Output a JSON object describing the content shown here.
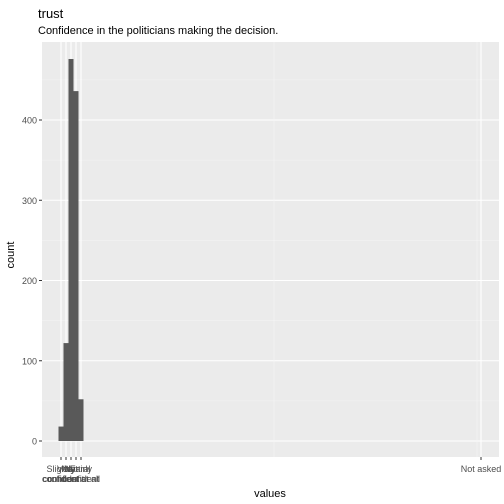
{
  "chart_data": {
    "type": "bar",
    "title": "trust",
    "subtitle": "Confidence in the politicians making the decision.",
    "xlabel": "values",
    "ylabel": "count",
    "ylim": [
      0,
      480
    ],
    "yticks": [
      0,
      100,
      200,
      300,
      400
    ],
    "grid": true,
    "legend": "none",
    "bar_color": "#595959",
    "panel_color": "#ebebeb",
    "categories": [
      "Slightly confident",
      "Very confident",
      "Not confident at all",
      "Neutral",
      "Fairly confident",
      "Not asked"
    ],
    "tick_labels": [
      [
        "Slightly",
        "confident"
      ],
      [
        "Very",
        "confident"
      ],
      [
        "Not",
        "confident at all"
      ],
      [
        "Neutral"
      ],
      [
        "Fairly",
        "confident"
      ],
      [
        "Not asked"
      ]
    ],
    "values": [
      18,
      122,
      476,
      436,
      52,
      0
    ]
  }
}
